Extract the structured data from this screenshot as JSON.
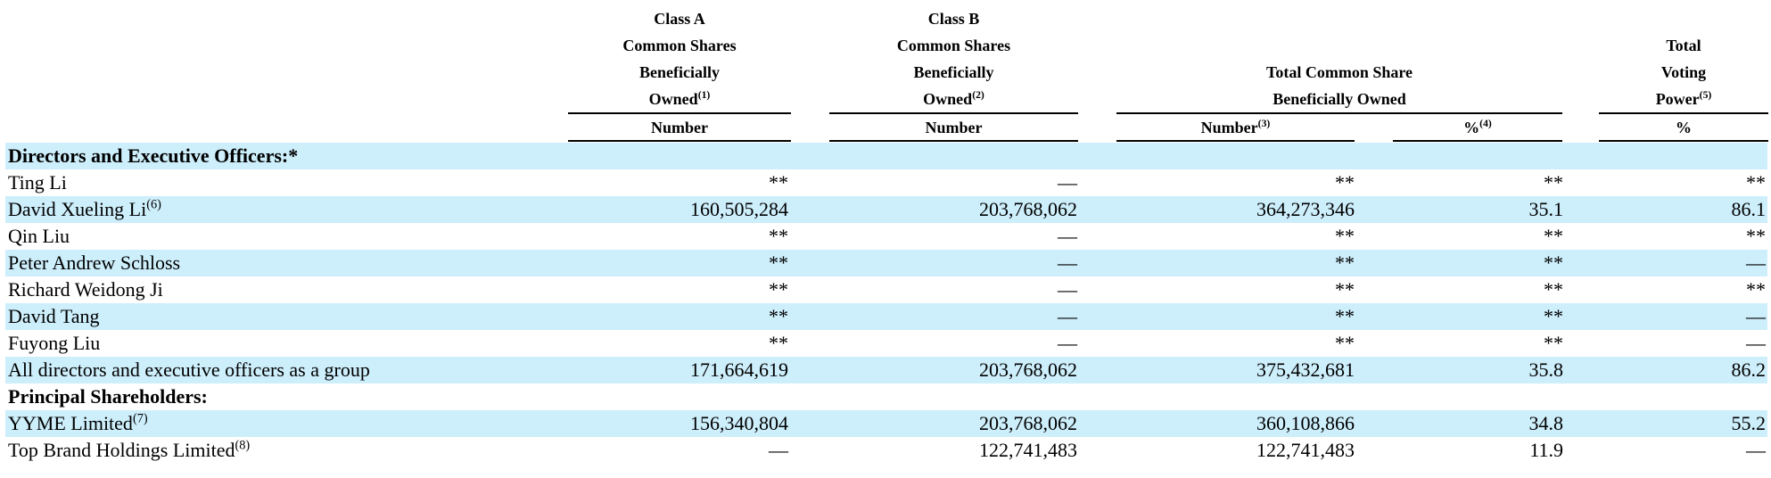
{
  "headers": {
    "class_a": [
      "Class A",
      "Common Shares",
      "Beneficially",
      "Owned"
    ],
    "class_a_note": "(1)",
    "class_a_sub": "Number",
    "class_b": [
      "Class B",
      "Common Shares",
      "Beneficially",
      "Owned"
    ],
    "class_b_note": "(2)",
    "class_b_sub": "Number",
    "total": [
      "Total Common Share",
      "Beneficially Owned"
    ],
    "total_number": "Number",
    "total_number_note": "(3)",
    "total_pct": "%",
    "total_pct_note": "(4)",
    "voting": [
      "Total",
      "Voting",
      "Power"
    ],
    "voting_note": "(5)",
    "voting_sub": "%"
  },
  "sections": {
    "directors": "Directors and Executive Officers:*",
    "principal": "Principal Shareholders:"
  },
  "rows": [
    {
      "name": "Ting Li",
      "note": "",
      "class_a": "**",
      "class_b": "—",
      "total": "**",
      "pct": "**",
      "voting": "**"
    },
    {
      "name": "David Xueling Li",
      "note": "(6)",
      "class_a": "160,505,284",
      "class_b": "203,768,062",
      "total": "364,273,346",
      "pct": "35.1",
      "voting": "86.1"
    },
    {
      "name": "Qin Liu",
      "note": "",
      "class_a": "**",
      "class_b": "—",
      "total": "**",
      "pct": "**",
      "voting": "**"
    },
    {
      "name": "Peter Andrew Schloss",
      "note": "",
      "class_a": "**",
      "class_b": "—",
      "total": "**",
      "pct": "**",
      "voting": "—"
    },
    {
      "name": "Richard Weidong Ji",
      "note": "",
      "class_a": "**",
      "class_b": "—",
      "total": "**",
      "pct": "**",
      "voting": "**"
    },
    {
      "name": "David Tang",
      "note": "",
      "class_a": "**",
      "class_b": "—",
      "total": "**",
      "pct": "**",
      "voting": "—"
    },
    {
      "name": "Fuyong Liu",
      "note": "",
      "class_a": "**",
      "class_b": "—",
      "total": "**",
      "pct": "**",
      "voting": "—"
    },
    {
      "name": "All directors and executive officers as a group",
      "note": "",
      "class_a": "171,664,619",
      "class_b": "203,768,062",
      "total": "375,432,681",
      "pct": "35.8",
      "voting": "86.2"
    },
    {
      "name": "YYME Limited",
      "note": "(7)",
      "class_a": "156,340,804",
      "class_b": "203,768,062",
      "total": "360,108,866",
      "pct": "34.8",
      "voting": "55.2"
    },
    {
      "name": "Top Brand Holdings Limited",
      "note": "(8)",
      "class_a": "—",
      "class_b": "122,741,483",
      "total": "122,741,483",
      "pct": "11.9",
      "voting": "—"
    }
  ]
}
